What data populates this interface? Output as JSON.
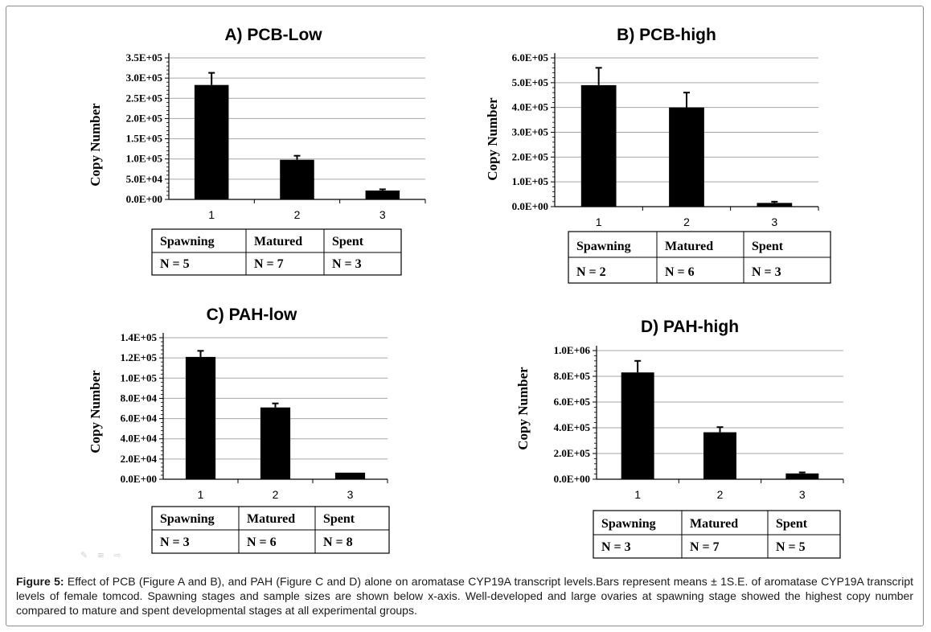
{
  "figure_label": "Figure 5:",
  "caption_text": "Effect of PCB (Figure A and B), and PAH (Figure C and D) alone on aromatase CYP19A transcript levels.Bars represent means ± 1S.E. of aromatase CYP19A transcript levels of female tomcod. Spawning stages and sample sizes are shown below x-axis. Well-developed and large ovaries at spawning stage showed the highest copy number compared to mature and spent developmental stages at all experimental groups.",
  "decor_icons": "✎ ≡ ⇨",
  "colors": {
    "bar": "#000000",
    "grid": "#a6a6a6",
    "axis": "#000000"
  },
  "chart_data": [
    {
      "type": "bar",
      "title": "A)  PCB-Low",
      "ylabel": "Copy Number",
      "categories": [
        "1",
        "2",
        "3"
      ],
      "values": [
        283000,
        98000,
        22000
      ],
      "errors": [
        30000,
        10000,
        3000
      ],
      "ylim": [
        0,
        350000
      ],
      "yticks": [
        0,
        50000,
        100000,
        150000,
        200000,
        250000,
        300000,
        350000
      ],
      "ytick_labels": [
        "0.0E+00",
        "5.0E+04",
        "1.0E+05",
        "1.5E+05",
        "2.0E+05",
        "2.5E+05",
        "3.0E+05",
        "3.5E+05"
      ],
      "grid": true,
      "table": {
        "headers": [
          "Spawning",
          "Matured",
          "Spent"
        ],
        "n": [
          "N = 5",
          "N = 7",
          "N = 3"
        ]
      }
    },
    {
      "type": "bar",
      "title": "B)   PCB-high",
      "ylabel": "Copy Number",
      "categories": [
        "1",
        "2",
        "3"
      ],
      "values": [
        490000,
        400000,
        15000
      ],
      "errors": [
        70000,
        60000,
        5000
      ],
      "ylim": [
        0,
        600000
      ],
      "yticks": [
        0,
        100000,
        200000,
        300000,
        400000,
        500000,
        600000
      ],
      "ytick_labels": [
        "0.0E+00",
        "1.0E+05",
        "2.0E+05",
        "3.0E+05",
        "4.0E+05",
        "5.0E+05",
        "6.0E+05"
      ],
      "grid": true,
      "table": {
        "headers": [
          "Spawning",
          "Matured",
          "Spent"
        ],
        "n": [
          "N = 2",
          "N = 6",
          "N = 3"
        ]
      }
    },
    {
      "type": "bar",
      "title": "C)  PAH-low",
      "ylabel": "Copy Number",
      "categories": [
        "1",
        "2",
        "3"
      ],
      "values": [
        121000,
        71000,
        6500
      ],
      "errors": [
        6000,
        4000,
        0
      ],
      "ylim": [
        0,
        140000
      ],
      "yticks": [
        0,
        20000,
        40000,
        60000,
        80000,
        100000,
        120000,
        140000
      ],
      "ytick_labels": [
        "0.0E+00",
        "2.0E+04",
        "4.0E+04",
        "6.0E+04",
        "8.0E+04",
        "1.0E+05",
        "1.2E+05",
        "1.4E+05"
      ],
      "grid": true,
      "table": {
        "headers": [
          "Spawning",
          "Matured",
          "Spent"
        ],
        "n": [
          "N = 3",
          "N = 6",
          "N = 8"
        ]
      }
    },
    {
      "type": "bar",
      "title": "D)    PAH-high",
      "ylabel": "Copy Number",
      "categories": [
        "1",
        "2",
        "3"
      ],
      "values": [
        830000,
        365000,
        45000
      ],
      "errors": [
        90000,
        40000,
        8000
      ],
      "ylim": [
        0,
        1000000
      ],
      "yticks": [
        0,
        200000,
        400000,
        600000,
        800000,
        1000000
      ],
      "ytick_labels": [
        "0.0E+00",
        "2.0E+05",
        "4.0E+05",
        "6.0E+05",
        "8.0E+05",
        "1.0E+06"
      ],
      "grid": true,
      "table": {
        "headers": [
          "Spawning",
          "Matured",
          "Spent"
        ],
        "n": [
          "N = 3",
          "N = 7",
          "N = 5"
        ]
      }
    }
  ]
}
